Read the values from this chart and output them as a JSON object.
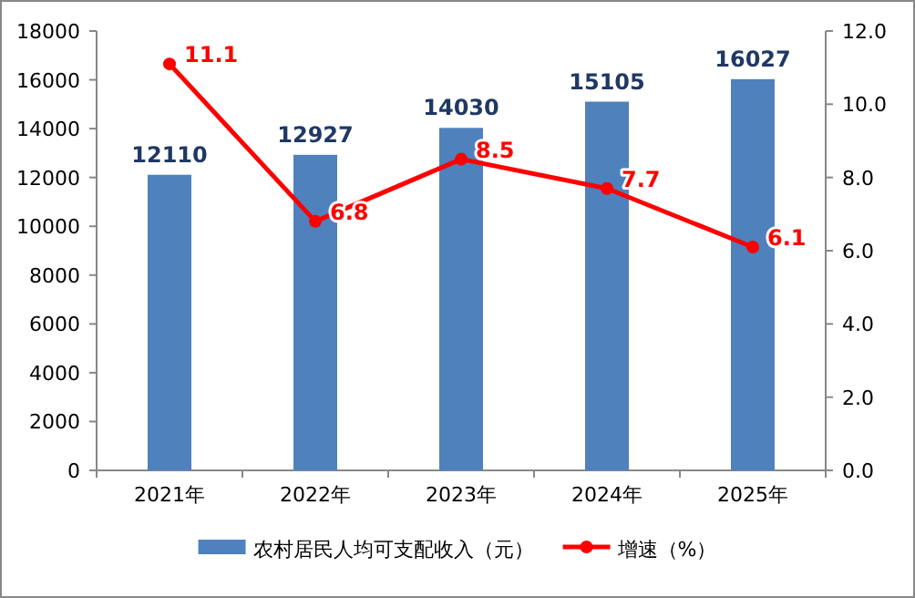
{
  "chart_data": {
    "type": "bar",
    "categories": [
      "2021年",
      "2022年",
      "2023年",
      "2024年",
      "2025年"
    ],
    "series": [
      {
        "name": "农村居民人均可支配收入（元）",
        "color": "#4f81bd",
        "values": [
          12110,
          12927,
          14030,
          15105,
          16027
        ]
      },
      {
        "name": "增速（%）",
        "type": "line",
        "axis": "y2",
        "color": "#ff0000",
        "values": [
          11.1,
          6.8,
          8.5,
          7.7,
          6.1
        ]
      }
    ],
    "ylim": [
      0,
      18000
    ],
    "yticks": [
      0,
      2000,
      4000,
      6000,
      8000,
      10000,
      12000,
      14000,
      16000,
      18000
    ],
    "y2lim": [
      0,
      12
    ],
    "y2ticks": [
      {
        "value": 0,
        "label": "0.0"
      },
      {
        "value": 2,
        "label": "2.0"
      },
      {
        "value": 4,
        "label": "4.0"
      },
      {
        "value": 6,
        "label": "6.0"
      },
      {
        "value": 8,
        "label": "8.0"
      },
      {
        "value": 10,
        "label": "10.0"
      },
      {
        "value": 12,
        "label": "12.0"
      }
    ],
    "data_labels": true,
    "legend": "bottom",
    "marker": "circle",
    "grid": false,
    "line_style": "solid"
  }
}
